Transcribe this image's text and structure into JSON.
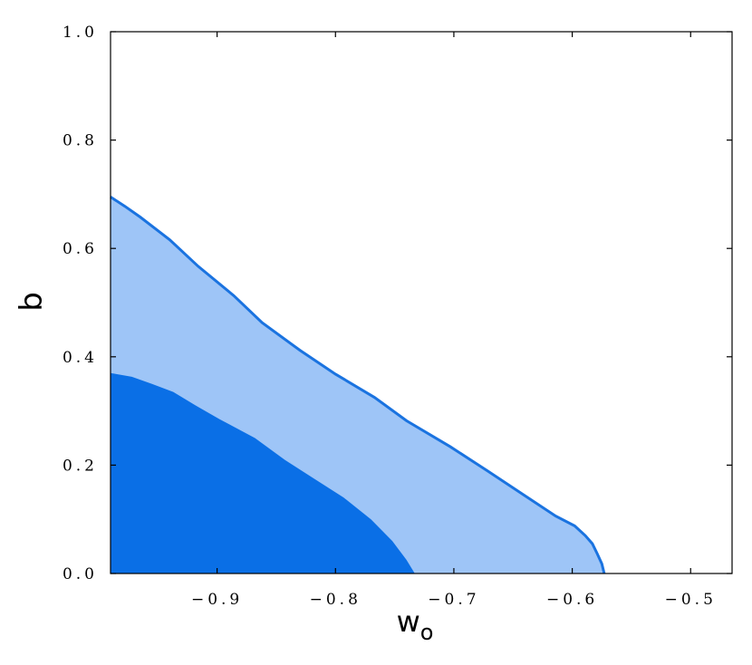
{
  "chart_data": {
    "type": "area",
    "title": "",
    "xlabel": "w",
    "xlabel_subscript": "o",
    "ylabel": "b",
    "xlim": [
      -0.99,
      -0.465
    ],
    "ylim": [
      0.0,
      1.0
    ],
    "x_ticks": [
      -0.9,
      -0.8,
      -0.7,
      -0.6,
      -0.5
    ],
    "x_tick_labels": [
      "−0.9",
      "−0.8",
      "−0.7",
      "−0.6",
      "−0.5"
    ],
    "y_ticks": [
      0.0,
      0.2,
      0.4,
      0.6,
      0.8,
      1.0
    ],
    "y_tick_labels": [
      "0.0",
      "0.2",
      "0.4",
      "0.6",
      "0.8",
      "1.0"
    ],
    "grid": false,
    "series": [
      {
        "level": "outer",
        "color": "#9ec5f7",
        "edge_color": "#1a73e0",
        "x": [
          -0.99,
          -0.978,
          -0.965,
          -0.94,
          -0.916,
          -0.886,
          -0.862,
          -0.83,
          -0.8,
          -0.767,
          -0.74,
          -0.703,
          -0.672,
          -0.641,
          -0.614,
          -0.598,
          -0.589,
          -0.583,
          -0.579,
          -0.575,
          -0.573
        ],
        "y": [
          0.695,
          0.678,
          0.658,
          0.616,
          0.567,
          0.513,
          0.463,
          0.412,
          0.368,
          0.325,
          0.282,
          0.234,
          0.19,
          0.145,
          0.106,
          0.088,
          0.07,
          0.055,
          0.037,
          0.018,
          0.0
        ]
      },
      {
        "level": "inner",
        "color": "#0a6fe6",
        "x": [
          -0.99,
          -0.972,
          -0.955,
          -0.937,
          -0.918,
          -0.898,
          -0.868,
          -0.843,
          -0.818,
          -0.793,
          -0.77,
          -0.752,
          -0.74,
          -0.733
        ],
        "y": [
          0.37,
          0.363,
          0.35,
          0.335,
          0.31,
          0.285,
          0.25,
          0.21,
          0.175,
          0.14,
          0.1,
          0.06,
          0.025,
          0.0
        ]
      }
    ]
  }
}
